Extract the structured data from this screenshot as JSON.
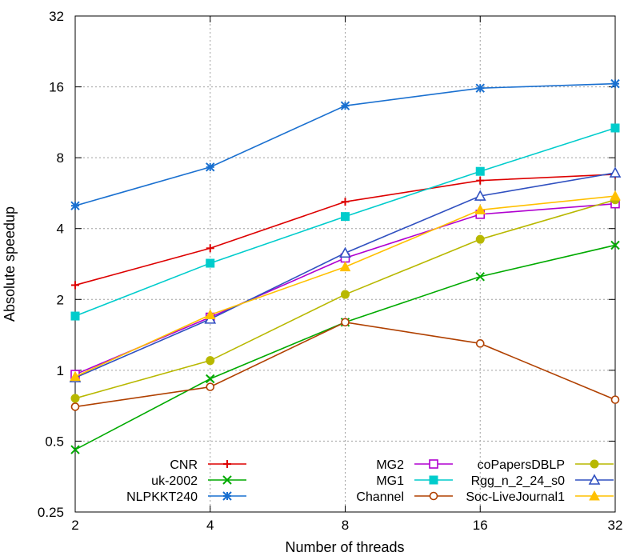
{
  "chart_data": {
    "type": "line",
    "title": "",
    "xlabel": "Number of threads",
    "ylabel": "Absolute speedup",
    "x": [
      2,
      4,
      8,
      16,
      32
    ],
    "x_scale": "log2",
    "y_scale": "log2",
    "xlim": [
      2,
      32
    ],
    "ylim": [
      0.25,
      32
    ],
    "x_ticks": [
      "2",
      "4",
      "8",
      "16",
      "32"
    ],
    "y_ticks": [
      {
        "value": 0.25,
        "label": "0.25"
      },
      {
        "value": 0.5,
        "label": "0.5"
      },
      {
        "value": 1,
        "label": "1"
      },
      {
        "value": 2,
        "label": "2"
      },
      {
        "value": 4,
        "label": "4"
      },
      {
        "value": 8,
        "label": "8"
      },
      {
        "value": 16,
        "label": "16"
      },
      {
        "value": 32,
        "label": "32"
      }
    ],
    "grid": true,
    "legend_position": "bottom",
    "series": [
      {
        "name": "CNR",
        "color": "#dd0000",
        "marker": "plus",
        "values": [
          2.3,
          3.3,
          5.2,
          6.4,
          6.8
        ]
      },
      {
        "name": "uk-2002",
        "color": "#00aa00",
        "marker": "cross",
        "values": [
          0.46,
          0.92,
          1.6,
          2.5,
          3.4
        ]
      },
      {
        "name": "NLPKKT240",
        "color": "#1a70d0",
        "marker": "star",
        "values": [
          5.0,
          7.3,
          13.3,
          15.8,
          16.5
        ]
      },
      {
        "name": "MG2",
        "color": "#b000d0",
        "marker": "square-open",
        "values": [
          0.96,
          1.68,
          3.0,
          4.6,
          5.1
        ]
      },
      {
        "name": "MG1",
        "color": "#00cccc",
        "marker": "square-filled",
        "values": [
          1.7,
          2.85,
          4.5,
          7.0,
          10.7
        ]
      },
      {
        "name": "Channel",
        "color": "#b04000",
        "marker": "circle-open",
        "values": [
          0.7,
          0.85,
          1.6,
          1.3,
          0.75
        ]
      },
      {
        "name": "coPapersDBLP",
        "color": "#b8b800",
        "marker": "circle-filled",
        "values": [
          0.76,
          1.1,
          2.1,
          3.6,
          5.3
        ]
      },
      {
        "name": "Rgg_n_2_24_s0",
        "color": "#3050c0",
        "marker": "triangle-open",
        "values": [
          0.93,
          1.65,
          3.15,
          5.5,
          6.9
        ]
      },
      {
        "name": "Soc-LiveJournal1",
        "color": "#ffc000",
        "marker": "triangle-filled",
        "values": [
          0.94,
          1.72,
          2.75,
          4.8,
          5.5
        ]
      }
    ]
  }
}
